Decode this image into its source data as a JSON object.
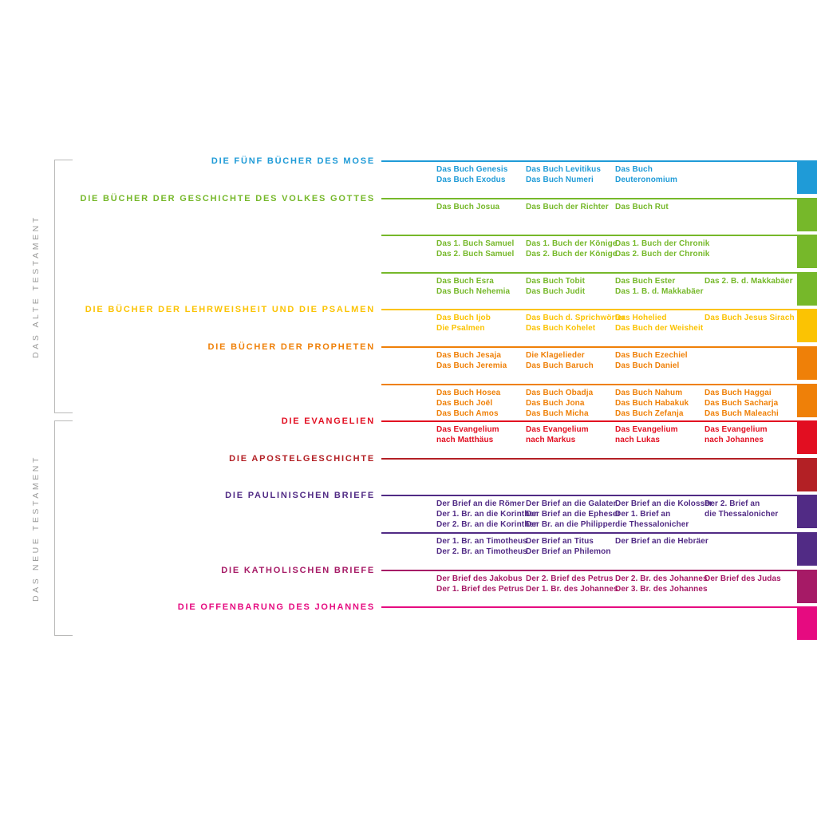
{
  "testaments": [
    {
      "label": "DAS ALTE TESTAMENT",
      "groups": [
        {
          "title": "DIE FÜNF BÜCHER DES MOSE",
          "color": "#1f9bd7",
          "rows": [
            {
              "columns": [
                [
                  "Das Buch Genesis",
                  "Das Buch Exodus"
                ],
                [
                  "Das Buch Levitikus",
                  "Das Buch Numeri"
                ],
                [
                  "Das Buch",
                  "Deuteronomium"
                ],
                []
              ]
            }
          ]
        },
        {
          "title": "DIE BÜCHER DER GESCHICHTE DES VOLKES GOTTES",
          "color": "#76b82a",
          "rows": [
            {
              "columns": [
                [
                  "Das Buch Josua"
                ],
                [
                  "Das Buch der Richter"
                ],
                [
                  "Das Buch Rut"
                ],
                []
              ]
            },
            {
              "columns": [
                [
                  "Das 1. Buch Samuel",
                  "Das 2. Buch Samuel"
                ],
                [
                  "Das 1. Buch der Könige",
                  "Das 2. Buch der Könige"
                ],
                [
                  "Das 1. Buch der Chronik",
                  "Das 2. Buch der Chronik"
                ],
                []
              ]
            },
            {
              "columns": [
                [
                  "Das Buch Esra",
                  "Das Buch Nehemia"
                ],
                [
                  "Das Buch Tobit",
                  "Das Buch Judit"
                ],
                [
                  "Das Buch Ester",
                  "Das 1. B. d. Makkabäer"
                ],
                [
                  "Das 2. B. d. Makkabäer"
                ]
              ]
            }
          ]
        },
        {
          "title": "DIE BÜCHER DER LEHRWEISHEIT UND DIE PSALMEN",
          "color": "#fbc303",
          "rows": [
            {
              "columns": [
                [
                  "Das Buch Ijob",
                  "Die Psalmen"
                ],
                [
                  "Das Buch d. Sprichwörter",
                  "Das Buch Kohelet"
                ],
                [
                  "Das Hohelied",
                  "Das Buch der Weisheit"
                ],
                [
                  "Das Buch Jesus Sirach"
                ]
              ]
            }
          ]
        },
        {
          "title": "DIE BÜCHER DER PROPHETEN",
          "color": "#ef8008",
          "rows": [
            {
              "columns": [
                [
                  "Das Buch Jesaja",
                  "Das Buch Jeremia"
                ],
                [
                  "Die Klagelieder",
                  "Das Buch Baruch"
                ],
                [
                  "Das Buch Ezechiel",
                  "Das Buch Daniel"
                ],
                []
              ]
            },
            {
              "columns": [
                [
                  "Das Buch Hosea",
                  "Das Buch Joël",
                  "Das Buch Amos"
                ],
                [
                  "Das Buch Obadja",
                  "Das Buch Jona",
                  "Das Buch Micha"
                ],
                [
                  "Das Buch Nahum",
                  "Das Buch Habakuk",
                  "Das Buch Zefanja"
                ],
                [
                  "Das Buch Haggai",
                  "Das Buch Sacharja",
                  "Das Buch Maleachi"
                ]
              ]
            }
          ]
        }
      ]
    },
    {
      "label": "DAS NEUE TESTAMENT",
      "groups": [
        {
          "title": "DIE EVANGELIEN",
          "color": "#e20e21",
          "rows": [
            {
              "columns": [
                [
                  "Das Evangelium",
                  "nach Matthäus"
                ],
                [
                  "Das Evangelium",
                  "nach Markus"
                ],
                [
                  "Das Evangelium",
                  "nach Lukas"
                ],
                [
                  "Das Evangelium",
                  "nach Johannes"
                ]
              ]
            }
          ]
        },
        {
          "title": "DIE APOSTELGESCHICHTE",
          "color": "#b32025",
          "rows": [
            {
              "columns": [
                [],
                [],
                [],
                []
              ]
            }
          ]
        },
        {
          "title": "DIE PAULINISCHEN BRIEFE",
          "color": "#512b85",
          "rows": [
            {
              "columns": [
                [
                  "Der Brief an die Römer",
                  "Der 1. Br. an die Korinther",
                  "Der 2. Br. an die Korinther"
                ],
                [
                  "Der Brief an die Galater",
                  "Der Brief an die Epheser",
                  "Der Br. an die Philipper"
                ],
                [
                  "Der Brief an die Kolosser",
                  "Der 1. Brief an",
                  "die Thessalonicher"
                ],
                [
                  "Der 2. Brief an",
                  "die Thessalonicher"
                ]
              ]
            },
            {
              "columns": [
                [
                  "Der 1. Br. an Timotheus",
                  "Der 2. Br. an Timotheus"
                ],
                [
                  "Der Brief an Titus",
                  "Der Brief an Philemon"
                ],
                [
                  "Der Brief an die Hebräer"
                ],
                []
              ]
            }
          ]
        },
        {
          "title": "DIE KATHOLISCHEN BRIEFE",
          "color": "#a61a66",
          "rows": [
            {
              "columns": [
                [
                  "Der Brief des Jakobus",
                  "Der 1. Brief des Petrus"
                ],
                [
                  "Der 2. Brief des Petrus",
                  "Der 1. Br. des Johannes"
                ],
                [
                  "Der 2. Br. des Johannes",
                  "Der 3. Br. des Johannes"
                ],
                [
                  "Der Brief des Judas"
                ]
              ]
            }
          ]
        },
        {
          "title": "DIE OFFENBARUNG DES JOHANNES",
          "color": "#e60b80",
          "rows": [
            {
              "columns": [
                [],
                [],
                [],
                []
              ]
            }
          ]
        }
      ]
    }
  ]
}
